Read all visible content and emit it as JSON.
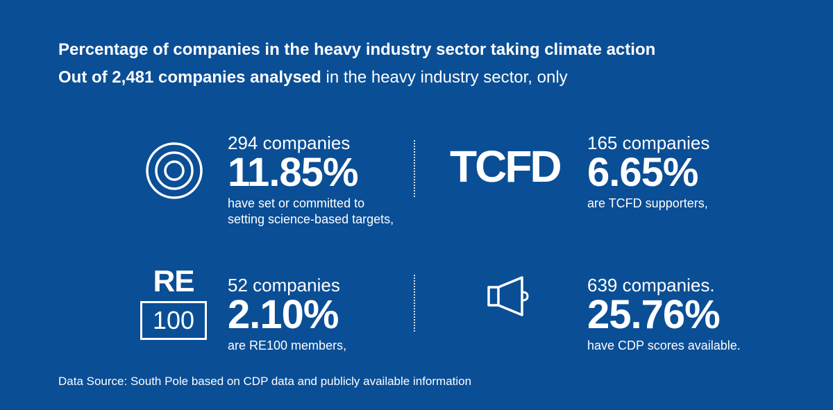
{
  "header": {
    "title": "Percentage of companies in the heavy industry sector taking climate action",
    "subtitle_bold": "Out of 2,481 companies analysed",
    "subtitle_rest": " in the heavy industry sector, only"
  },
  "stats": {
    "sbt": {
      "count": "294 companies",
      "percent": "11.85%",
      "description": "have set or committed to setting science-based targets,",
      "icon": "target-icon"
    },
    "tcfd": {
      "count": "165 companies",
      "percent": "6.65%",
      "description": "are TCFD supporters,",
      "logo_text": "TCFD"
    },
    "re100": {
      "count": "52 companies",
      "percent": "2.10%",
      "description": "are RE100 members,",
      "logo_top": "RE",
      "logo_bottom": "100"
    },
    "cdp": {
      "count": "639 companies.",
      "percent": "25.76%",
      "description": "have CDP scores available.",
      "icon": "speaker-icon"
    }
  },
  "footer": {
    "source": "Data Source: South Pole based on CDP data and publicly available information"
  },
  "colors": {
    "background": "#0a4e96",
    "foreground": "#ffffff"
  }
}
